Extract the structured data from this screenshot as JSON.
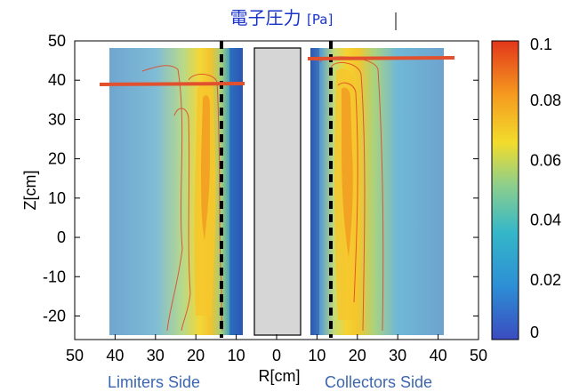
{
  "title": {
    "main": "電子圧力",
    "unit": "[Pa]"
  },
  "chart_data": {
    "type": "heatmap",
    "title": "電子圧力 [Pa]",
    "xlabel": "R[cm]",
    "ylabel": "Z[cm]",
    "x_ticks": [
      "50",
      "40",
      "30",
      "20",
      "10",
      "0",
      "10",
      "20",
      "30",
      "40",
      "50"
    ],
    "y_ticks": [
      50,
      40,
      30,
      20,
      10,
      0,
      -10,
      -20
    ],
    "ylim": [
      -26,
      50
    ],
    "colorbar": {
      "range": [
        0,
        0.1
      ],
      "ticks": [
        "0.1",
        "0.08",
        "0.06",
        "0.04",
        "0.02",
        "0"
      ],
      "colors": [
        "#3b4cc0",
        "#2d8fd5",
        "#35b7c8",
        "#8fcf8a",
        "#f2dc2c",
        "#f59a1f",
        "#e2361b"
      ]
    },
    "regions": [
      {
        "name": "Limiters Side",
        "r_range": [
          41,
          9
        ],
        "peak_r": 18,
        "peak_value": 0.08,
        "cut_z": 39,
        "probe_r": 14
      },
      {
        "name": "Collectors Side",
        "r_range": [
          8,
          41
        ],
        "peak_r": 16,
        "peak_value": 0.085,
        "cut_z": 45.5,
        "probe_r": 13
      }
    ],
    "center_body_r": [
      -6,
      6
    ]
  },
  "labels": {
    "limiters_side": "Limiters Side",
    "collectors_side": "Collectors Side"
  }
}
